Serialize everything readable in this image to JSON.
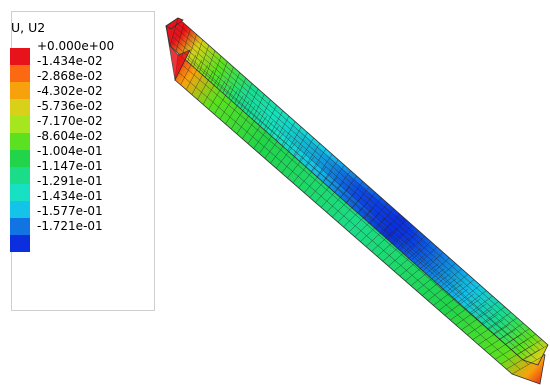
{
  "legend": {
    "title": "U, U2",
    "labels": [
      "+0.000e+00",
      "-1.434e-02",
      "-2.868e-02",
      "-4.302e-02",
      "-5.736e-02",
      "-7.170e-02",
      "-8.604e-02",
      "-1.004e-01",
      "-1.147e-01",
      "-1.291e-01",
      "-1.434e-01",
      "-1.577e-01",
      "-1.721e-01"
    ],
    "colors": [
      "#e8131a",
      "#fb6a12",
      "#f7a20d",
      "#d9d01a",
      "#a6e61f",
      "#5be11f",
      "#22d44a",
      "#1bdc88",
      "#18e1c3",
      "#14c4e8",
      "#1274e3",
      "#0b2fde"
    ]
  }
}
